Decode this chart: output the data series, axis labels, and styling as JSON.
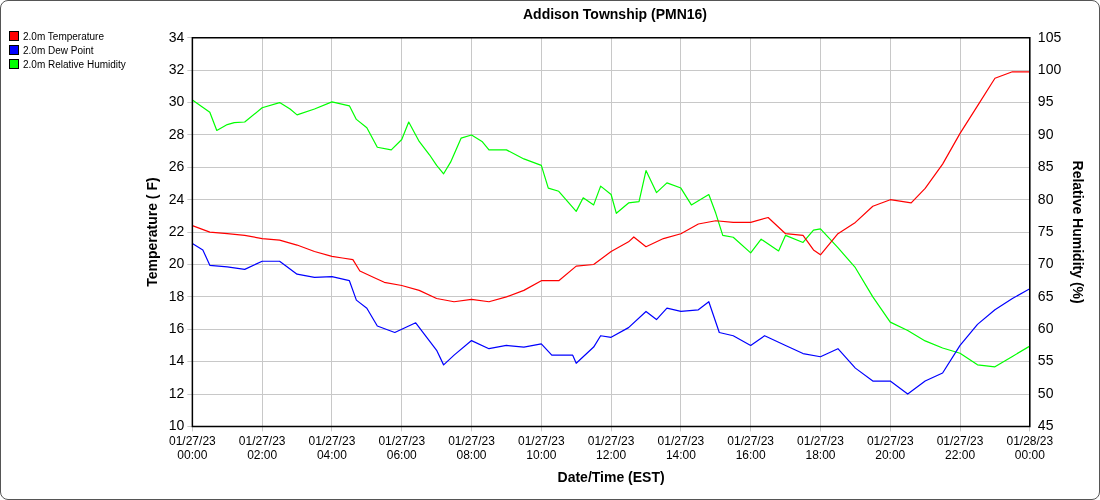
{
  "chart_data": {
    "type": "line",
    "title": "Addison Township (PMN16)",
    "xlabel": "Date/Time (EST)",
    "ylabel": "Temperature ( F)",
    "y2label": "Relative Humidity (%)",
    "xlim": [
      "--01-27T00:00",
      "--01-28T00:00"
    ],
    "xticks": [
      {
        "value": "--01-27T00:00",
        "label": "01/27/23 00:00"
      },
      {
        "value": "--01-27T02:00",
        "label": "01/27/23 02:00"
      },
      {
        "value": "--01-27T04:00",
        "label": "01/27/23 04:00"
      },
      {
        "value": "--01-27T06:00",
        "label": "01/27/23 06:00"
      },
      {
        "value": "--01-27T08:00",
        "label": "01/27/23 08:00"
      },
      {
        "value": "--01-27T10:00",
        "label": "01/27/23 10:00"
      },
      {
        "value": "--01-27T12:00",
        "label": "01/27/23 12:00"
      },
      {
        "value": "--01-27T14:00",
        "label": "01/27/23 14:00"
      },
      {
        "value": "--01-27T16:00",
        "label": "01/27/23 16:00"
      },
      {
        "value": "--01-27T18:00",
        "label": "01/27/23 18:00"
      },
      {
        "value": "--01-27T20:00",
        "label": "01/27/23 20:00"
      },
      {
        "value": "--01-27T22:00",
        "label": "01/27/23 22:00"
      },
      {
        "value": "--01-28T00:00",
        "label": "01/28/23 00:00"
      }
    ],
    "ylim": [
      10,
      34
    ],
    "yticks": [
      10,
      12,
      14,
      16,
      18,
      20,
      22,
      24,
      26,
      28,
      30,
      32,
      34
    ],
    "y2lim": [
      45,
      105
    ],
    "y2ticks": [
      45,
      50,
      55,
      60,
      65,
      70,
      75,
      80,
      85,
      90,
      95,
      100,
      105
    ],
    "grid": true,
    "legend": "top left",
    "series": [
      {
        "name": "2.0m Temperature",
        "color": "#ff0000",
        "x": [
          "--01-27T00:00",
          "--01-27T00:30",
          "--01-27T01:00",
          "--01-27T01:30",
          "--01-27T02:00",
          "--01-27T02:30",
          "--01-27T03:00",
          "--01-27T03:30",
          "--01-27T04:00",
          "--01-27T04:18",
          "--01-27T04:36",
          "--01-27T04:48",
          "--01-27T05:12",
          "--01-27T05:30",
          "--01-27T06:00",
          "--01-27T06:30",
          "--01-27T07:00",
          "--01-27T07:30",
          "--01-27T08:00",
          "--01-27T08:30",
          "--01-27T09:00",
          "--01-27T09:30",
          "--01-27T10:00",
          "--01-27T10:30",
          "--01-27T11:00",
          "--01-27T11:30",
          "--01-27T12:00",
          "--01-27T12:30",
          "--01-27T12:39",
          "--01-27T13:00",
          "--01-27T13:30",
          "--01-27T14:00",
          "--01-27T14:30",
          "--01-27T15:00",
          "--01-27T15:30",
          "--01-27T16:00",
          "--01-27T16:30",
          "--01-27T17:00",
          "--01-27T17:30",
          "--01-27T17:48",
          "--01-27T18:00",
          "--01-27T18:30",
          "--01-27T19:00",
          "--01-27T19:30",
          "--01-27T20:00",
          "--01-27T20:36",
          "--01-27T21:00",
          "--01-27T21:30",
          "--01-27T22:00",
          "--01-27T22:30",
          "--01-27T23:00",
          "--01-27T23:30",
          "--01-28T00:00"
        ],
        "values": [
          22.4,
          22.0,
          21.9,
          21.8,
          21.6,
          21.5,
          21.2,
          20.8,
          20.5,
          20.4,
          20.3,
          19.6,
          19.2,
          18.9,
          18.7,
          18.4,
          17.9,
          17.7,
          17.85,
          17.7,
          18.0,
          18.4,
          19.0,
          19.0,
          19.9,
          20.0,
          20.8,
          21.4,
          21.7,
          21.1,
          21.6,
          21.9,
          22.5,
          22.7,
          22.6,
          22.6,
          22.9,
          21.9,
          21.8,
          20.9,
          20.6,
          21.9,
          22.6,
          23.6,
          24.0,
          23.8,
          24.7,
          26.2,
          28.1,
          29.8,
          31.5,
          31.9,
          31.9
        ]
      },
      {
        "name": "2.0m Dew Point",
        "color": "#0000ff",
        "x": [
          "--01-27T00:00",
          "--01-27T00:18",
          "--01-27T00:30",
          "--01-27T01:00",
          "--01-27T01:30",
          "--01-27T02:00",
          "--01-27T02:30",
          "--01-27T03:00",
          "--01-27T03:30",
          "--01-27T04:00",
          "--01-27T04:30",
          "--01-27T04:42",
          "--01-27T05:00",
          "--01-27T05:18",
          "--01-27T05:48",
          "--01-27T06:24",
          "--01-27T07:00",
          "--01-27T07:12",
          "--01-27T07:30",
          "--01-27T08:00",
          "--01-27T08:30",
          "--01-27T09:00",
          "--01-27T09:30",
          "--01-27T10:00",
          "--01-27T10:18",
          "--01-27T10:54",
          "--01-27T11:00",
          "--01-27T11:30",
          "--01-27T11:42",
          "--01-27T12:00",
          "--01-27T12:30",
          "--01-27T13:00",
          "--01-27T13:18",
          "--01-27T13:36",
          "--01-27T14:00",
          "--01-27T14:30",
          "--01-27T14:48",
          "--01-27T15:06",
          "--01-27T15:30",
          "--01-27T16:00",
          "--01-27T16:24",
          "--01-27T17:00",
          "--01-27T17:30",
          "--01-27T18:00",
          "--01-27T18:30",
          "--01-27T19:00",
          "--01-27T19:30",
          "--01-27T20:00",
          "--01-27T20:30",
          "--01-27T21:00",
          "--01-27T21:30",
          "--01-27T22:00",
          "--01-27T22:30",
          "--01-27T23:00",
          "--01-27T23:30",
          "--01-28T00:00"
        ],
        "values": [
          21.3,
          20.9,
          19.95,
          19.85,
          19.7,
          20.2,
          20.2,
          19.4,
          19.2,
          19.25,
          19.0,
          17.8,
          17.3,
          16.2,
          15.8,
          16.4,
          14.7,
          13.8,
          14.4,
          15.3,
          14.8,
          15.0,
          14.9,
          15.1,
          14.4,
          14.4,
          13.9,
          14.9,
          15.6,
          15.5,
          16.1,
          17.1,
          16.6,
          17.3,
          17.1,
          17.2,
          17.7,
          15.8,
          15.6,
          15.0,
          15.6,
          15.0,
          14.5,
          14.3,
          14.8,
          13.6,
          12.8,
          12.8,
          12.0,
          12.8,
          13.3,
          15.0,
          16.3,
          17.2,
          17.9,
          18.5
        ]
      },
      {
        "name": "2.0m Relative Humidity",
        "color": "#00ff00",
        "axis": "y2",
        "x": [
          "--01-27T00:00",
          "--01-27T00:30",
          "--01-27T00:42",
          "--01-27T01:00",
          "--01-27T01:12",
          "--01-27T01:30",
          "--01-27T02:00",
          "--01-27T02:30",
          "--01-27T02:48",
          "--01-27T03:00",
          "--01-27T03:30",
          "--01-27T04:00",
          "--01-27T04:30",
          "--01-27T04:42",
          "--01-27T05:00",
          "--01-27T05:18",
          "--01-27T05:42",
          "--01-27T06:00",
          "--01-27T06:12",
          "--01-27T06:30",
          "--01-27T06:48",
          "--01-27T07:00",
          "--01-27T07:12",
          "--01-27T07:24",
          "--01-27T07:42",
          "--01-27T08:00",
          "--01-27T08:18",
          "--01-27T08:30",
          "--01-27T09:00",
          "--01-27T09:30",
          "--01-27T10:00",
          "--01-27T10:12",
          "--01-27T10:30",
          "--01-27T11:00",
          "--01-27T11:12",
          "--01-27T11:30",
          "--01-27T11:42",
          "--01-27T12:00",
          "--01-27T12:09",
          "--01-27T12:30",
          "--01-27T12:48",
          "--01-27T13:00",
          "--01-27T13:18",
          "--01-27T13:36",
          "--01-27T14:00",
          "--01-27T14:18",
          "--01-27T14:48",
          "--01-27T15:00",
          "--01-27T15:12",
          "--01-27T15:30",
          "--01-27T16:00",
          "--01-27T16:18",
          "--01-27T16:48",
          "--01-27T17:00",
          "--01-27T17:30",
          "--01-27T17:48",
          "--01-27T18:00",
          "--01-27T18:30",
          "--01-27T19:00",
          "--01-27T19:30",
          "--01-27T20:00",
          "--01-27T20:30",
          "--01-27T21:00",
          "--01-27T21:30",
          "--01-27T22:00",
          "--01-27T22:30",
          "--01-27T23:00",
          "--01-27T23:30",
          "--01-28T00:00"
        ],
        "values": [
          95.4,
          93.5,
          90.7,
          91.6,
          91.9,
          92.0,
          94.2,
          95.0,
          94.0,
          93.1,
          94.0,
          95.1,
          94.5,
          92.4,
          91.1,
          88.1,
          87.7,
          89.3,
          92.0,
          89.0,
          86.9,
          85.3,
          84.0,
          85.8,
          89.5,
          90.0,
          89.0,
          87.7,
          87.7,
          86.3,
          85.3,
          81.8,
          81.3,
          78.2,
          80.3,
          79.2,
          82.1,
          80.8,
          77.9,
          79.5,
          79.7,
          84.5,
          81.1,
          82.6,
          81.8,
          79.2,
          80.8,
          77.9,
          74.5,
          74.2,
          71.8,
          73.9,
          72.1,
          74.5,
          73.4,
          75.3,
          75.5,
          72.6,
          69.5,
          65.0,
          61.1,
          59.8,
          58.2,
          57.1,
          56.3,
          54.5,
          54.2,
          55.8,
          57.4
        ]
      }
    ]
  }
}
